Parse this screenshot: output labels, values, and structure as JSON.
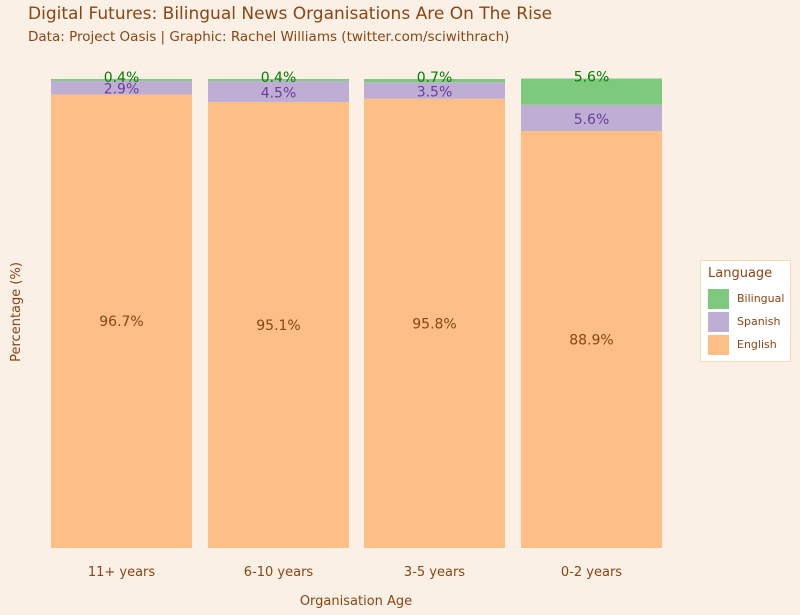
{
  "title": "Digital Futures: Bilingual News Organisations Are On The Rise",
  "subtitle": "Data: Project Oasis | Graphic: Rachel Williams (twitter.com/sciwithrach)",
  "chart_data": {
    "type": "bar",
    "stacked": true,
    "categories": [
      "11+ years",
      "6-10 years",
      "3-5 years",
      "0-2 years"
    ],
    "series": [
      {
        "name": "English",
        "values": [
          96.7,
          95.1,
          95.8,
          88.9
        ],
        "labels": [
          "96.7%",
          "95.1%",
          "95.8%",
          "88.9%"
        ],
        "color": "#fdbf85",
        "label_color": "#8b4513"
      },
      {
        "name": "Spanish",
        "values": [
          2.9,
          4.5,
          3.5,
          5.6
        ],
        "labels": [
          "2.9%",
          "4.5%",
          "3.5%",
          "5.6%"
        ],
        "color": "#beaed4",
        "label_color": "#6a3d9a"
      },
      {
        "name": "Bilingual",
        "values": [
          0.4,
          0.4,
          0.7,
          5.6
        ],
        "labels": [
          "0.4%",
          "0.4%",
          "0.7%",
          "5.6%"
        ],
        "color": "#7fc97f",
        "label_color": "#008000"
      }
    ],
    "xlabel": "Organisation Age",
    "ylabel": "Percentage (%)",
    "ylim": [
      0,
      100
    ],
    "grid": false,
    "legend": {
      "title": "Language",
      "placement": "right",
      "items": [
        {
          "name": "Bilingual",
          "color": "#7fc97f"
        },
        {
          "name": "Spanish",
          "color": "#beaed4"
        },
        {
          "name": "English",
          "color": "#fdbf85"
        }
      ]
    }
  }
}
